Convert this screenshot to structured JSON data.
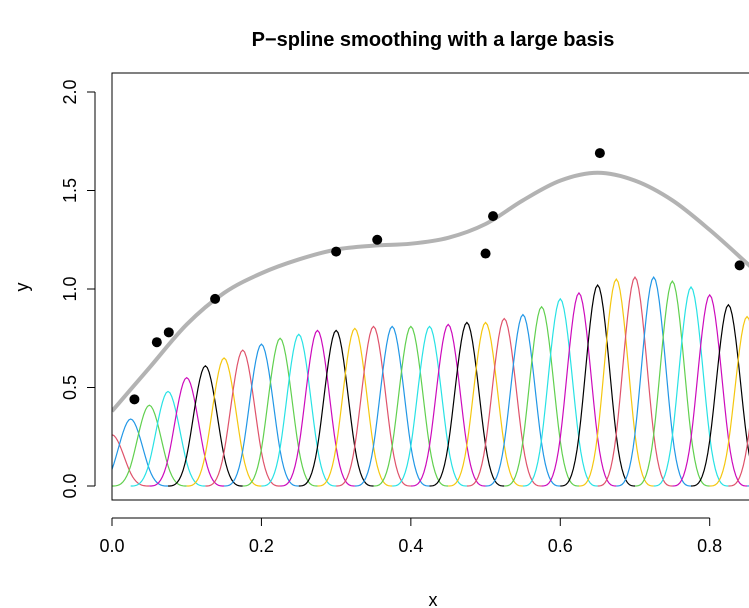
{
  "chart_data": {
    "type": "line",
    "title": "P−spline smoothing with a large basis",
    "xlabel": "x",
    "ylabel": "y",
    "xlim": [
      0,
      0.87
    ],
    "ylim": [
      0,
      2.0
    ],
    "x_ticks": [
      0.0,
      0.2,
      0.4,
      0.6,
      0.8
    ],
    "x_tick_labels": [
      "0.0",
      "0.2",
      "0.4",
      "0.6",
      "0.8"
    ],
    "y_ticks": [
      0.0,
      0.5,
      1.0,
      1.5,
      2.0
    ],
    "y_tick_labels": [
      "0.0",
      "0.5",
      "1.0",
      "1.5",
      "2.0"
    ],
    "grid": false,
    "points": [
      {
        "x": 0.03,
        "y": 0.44
      },
      {
        "x": 0.06,
        "y": 0.73
      },
      {
        "x": 0.076,
        "y": 0.78
      },
      {
        "x": 0.138,
        "y": 0.95
      },
      {
        "x": 0.3,
        "y": 1.19
      },
      {
        "x": 0.355,
        "y": 1.25
      },
      {
        "x": 0.5,
        "y": 1.18
      },
      {
        "x": 0.51,
        "y": 1.37
      },
      {
        "x": 0.653,
        "y": 1.69
      },
      {
        "x": 0.84,
        "y": 1.12
      }
    ],
    "smooth_curve": {
      "color": "#b3b3b3",
      "x": [
        0.0,
        0.05,
        0.1,
        0.15,
        0.2,
        0.25,
        0.3,
        0.35,
        0.4,
        0.45,
        0.5,
        0.55,
        0.6,
        0.65,
        0.7,
        0.75,
        0.8,
        0.85,
        0.87
      ],
      "y": [
        0.38,
        0.6,
        0.82,
        0.98,
        1.08,
        1.15,
        1.2,
        1.22,
        1.23,
        1.26,
        1.33,
        1.45,
        1.55,
        1.59,
        1.55,
        1.45,
        1.3,
        1.13,
        1.06
      ]
    },
    "basis": {
      "start": 0.0,
      "spacing": 0.025,
      "count": 37,
      "colors": [
        "#DF536B",
        "#2297E6",
        "#61D04F",
        "#28E2E5",
        "#CD0BBC",
        "#000000",
        "#F5C710"
      ],
      "heights": [
        0.26,
        0.34,
        0.41,
        0.48,
        0.55,
        0.61,
        0.65,
        0.69,
        0.72,
        0.75,
        0.77,
        0.79,
        0.79,
        0.8,
        0.81,
        0.81,
        0.81,
        0.81,
        0.82,
        0.83,
        0.83,
        0.85,
        0.87,
        0.91,
        0.95,
        0.98,
        1.02,
        1.05,
        1.06,
        1.06,
        1.04,
        1.01,
        0.97,
        0.92,
        0.86,
        0.81,
        0.75
      ]
    }
  }
}
